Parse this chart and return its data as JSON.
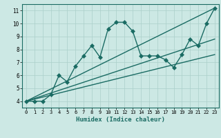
{
  "xlabel": "Humidex (Indice chaleur)",
  "xlim": [
    -0.5,
    23.5
  ],
  "ylim": [
    3.5,
    11.5
  ],
  "xticks": [
    0,
    1,
    2,
    3,
    4,
    5,
    6,
    7,
    8,
    9,
    10,
    11,
    12,
    13,
    14,
    15,
    16,
    17,
    18,
    19,
    20,
    21,
    22,
    23
  ],
  "yticks": [
    4,
    5,
    6,
    7,
    8,
    9,
    10,
    11
  ],
  "background_color": "#cce8e4",
  "grid_color": "#aacfca",
  "line_color": "#1a6b63",
  "lines": [
    {
      "x": [
        0,
        1,
        2,
        3,
        4,
        5,
        6,
        7,
        8,
        9,
        10,
        11,
        12,
        13,
        14,
        15,
        16,
        17,
        18,
        19,
        20,
        21,
        22,
        23
      ],
      "y": [
        4.0,
        4.0,
        4.0,
        4.5,
        6.0,
        5.5,
        6.7,
        7.5,
        8.3,
        7.4,
        9.6,
        10.1,
        10.1,
        9.4,
        7.5,
        7.5,
        7.5,
        7.2,
        6.6,
        7.6,
        8.8,
        8.3,
        10.0,
        11.2
      ],
      "marker": "D",
      "markersize": 3,
      "linewidth": 1.0
    },
    {
      "x": [
        0,
        23
      ],
      "y": [
        4.0,
        11.2
      ],
      "marker": null,
      "markersize": 0,
      "linewidth": 1.0
    },
    {
      "x": [
        0,
        23
      ],
      "y": [
        4.0,
        8.8
      ],
      "marker": null,
      "markersize": 0,
      "linewidth": 1.0
    },
    {
      "x": [
        0,
        23
      ],
      "y": [
        4.0,
        7.6
      ],
      "marker": null,
      "markersize": 0,
      "linewidth": 1.0
    }
  ]
}
